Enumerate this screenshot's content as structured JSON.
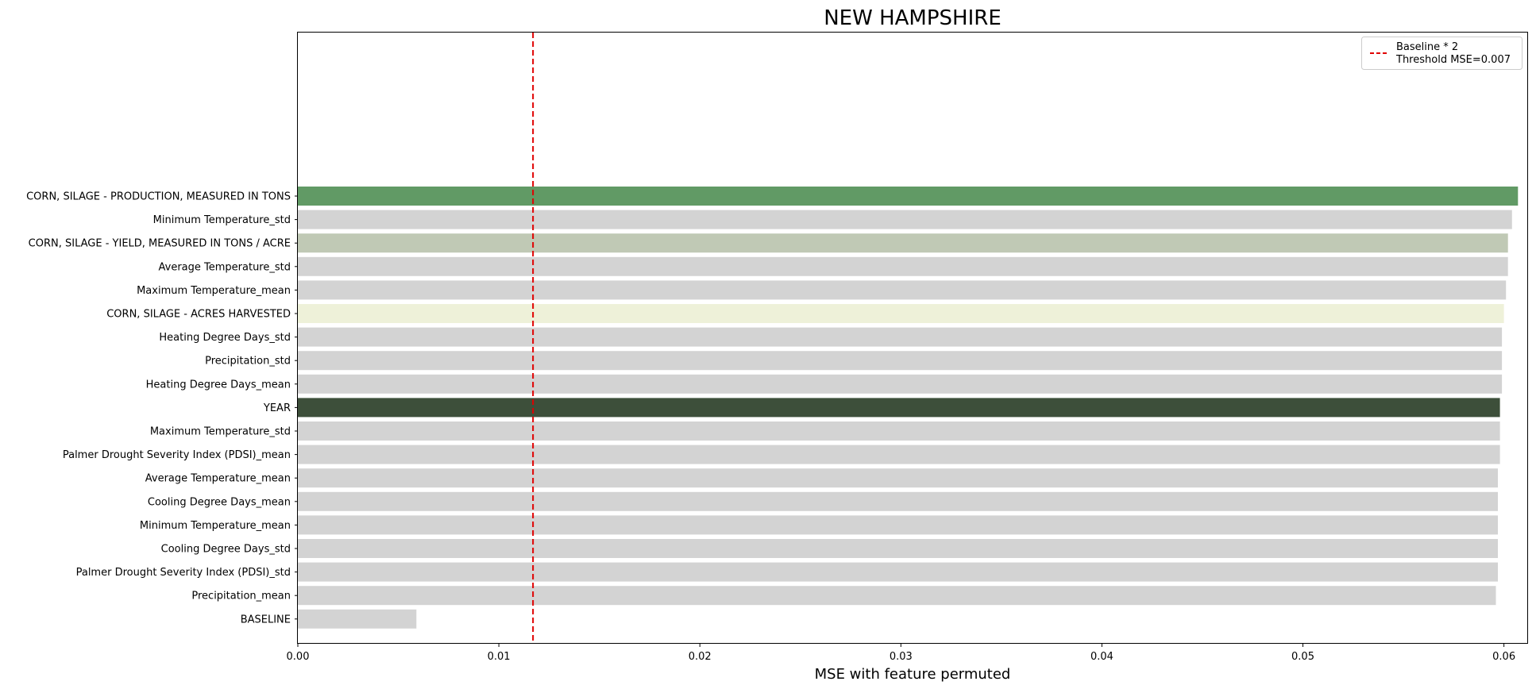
{
  "chart_data": {
    "type": "bar",
    "orientation": "horizontal",
    "title": "NEW HAMPSHIRE",
    "xlabel": "MSE with feature permuted",
    "ylabel": "",
    "xlim": [
      0.0,
      0.0612
    ],
    "xticks": [
      0.0,
      0.01,
      0.02,
      0.03,
      0.04,
      0.05,
      0.06
    ],
    "xtick_labels": [
      "0.00",
      "0.01",
      "0.02",
      "0.03",
      "0.04",
      "0.05",
      "0.06"
    ],
    "grid": false,
    "categories": [
      "CORN, SILAGE - PRODUCTION, MEASURED IN TONS",
      "Minimum Temperature_std",
      "CORN, SILAGE - YIELD, MEASURED IN TONS / ACRE",
      "Average Temperature_std",
      "Maximum Temperature_mean",
      "CORN, SILAGE - ACRES HARVESTED",
      "Heating Degree Days_std",
      "Precipitation_std",
      "Heating Degree Days_mean",
      "YEAR",
      "Maximum Temperature_std",
      "Palmer Drought Severity Index (PDSI)_mean",
      "Average Temperature_mean",
      "Cooling Degree Days_mean",
      "Minimum Temperature_mean",
      "Cooling Degree Days_std",
      "Palmer Drought Severity Index (PDSI)_std",
      "Precipitation_mean",
      "BASELINE"
    ],
    "values": [
      0.0607,
      0.0604,
      0.0602,
      0.0602,
      0.0601,
      0.06,
      0.0599,
      0.0599,
      0.0599,
      0.0598,
      0.0598,
      0.0598,
      0.0597,
      0.0597,
      0.0597,
      0.0597,
      0.0597,
      0.0596,
      0.0059
    ],
    "colors": [
      "#619a65",
      "#d3d3d3",
      "#c0c9b5",
      "#d3d3d3",
      "#d3d3d3",
      "#eef1d9",
      "#d3d3d3",
      "#d3d3d3",
      "#d3d3d3",
      "#3d4f3a",
      "#d3d3d3",
      "#d3d3d3",
      "#d3d3d3",
      "#d3d3d3",
      "#d3d3d3",
      "#d3d3d3",
      "#d3d3d3",
      "#d3d3d3",
      "#d3d3d3"
    ],
    "threshold": {
      "value": 0.0117,
      "color": "#e00000",
      "style": "dashed"
    },
    "legend": {
      "placement": "top-right",
      "entries": [
        "Baseline * 2",
        "Threshold MSE=0.007"
      ]
    }
  }
}
